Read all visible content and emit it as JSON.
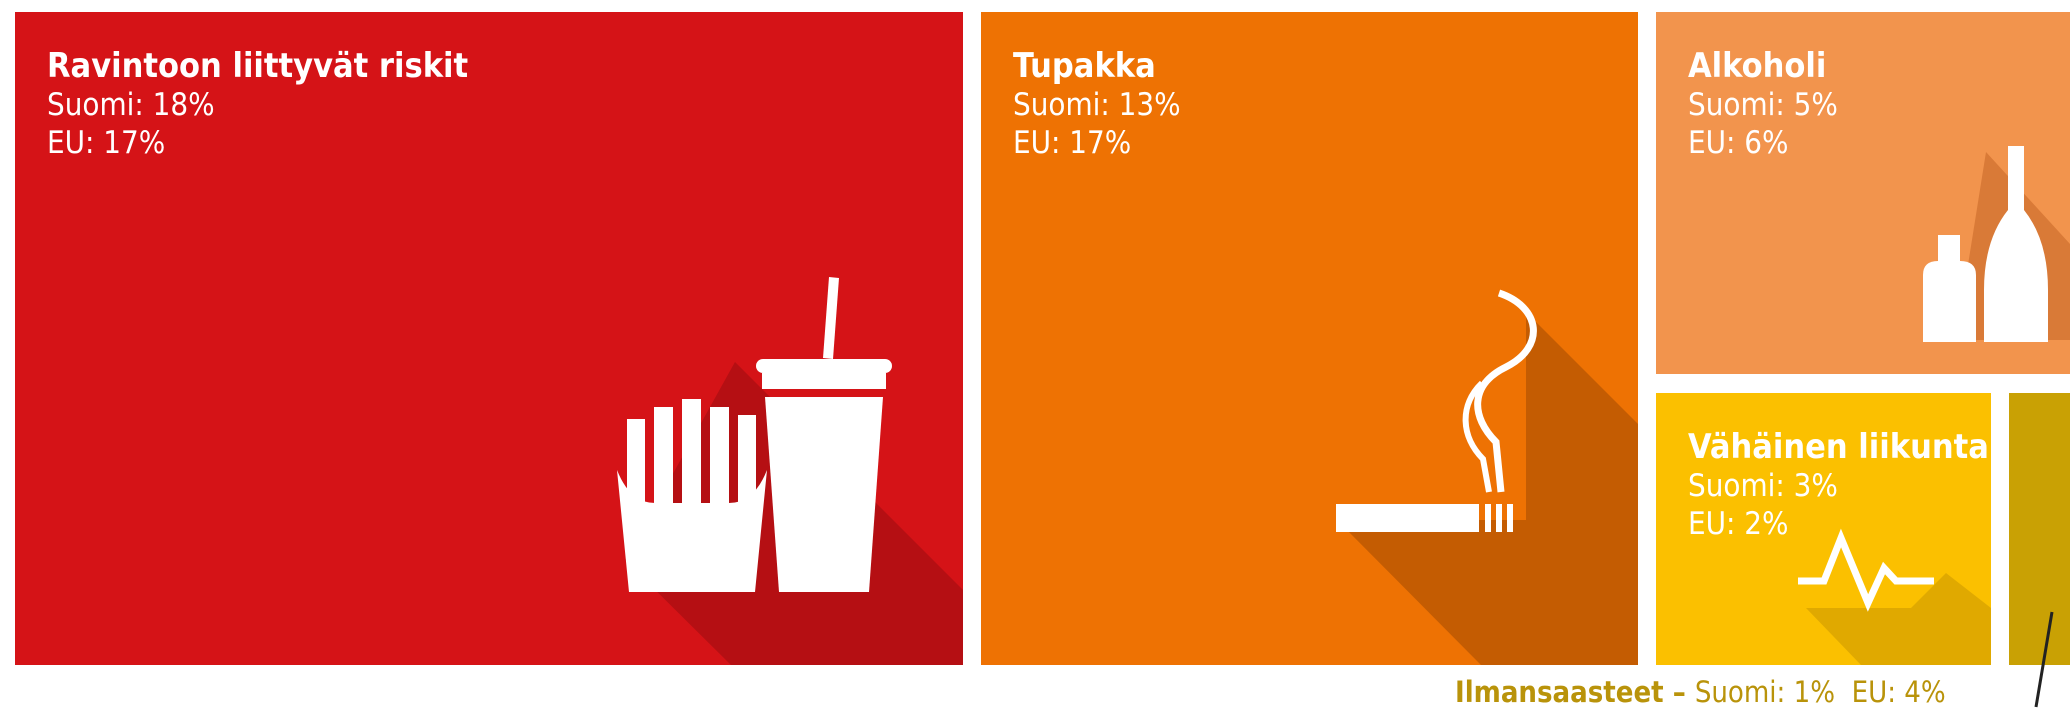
{
  "chart_data": {
    "type": "treemap",
    "items": [
      {
        "id": "food",
        "label": "Ravintoon liittyvät riskit",
        "suomi_text": "Suomi: 18%",
        "eu_text": "EU: 17%",
        "suomi": 18,
        "eu": 17,
        "color": "#d51317",
        "icon": "fries-and-drink-icon"
      },
      {
        "id": "tobacco",
        "label": "Tupakka",
        "suomi_text": "Suomi: 13%",
        "eu_text": "EU: 17%",
        "suomi": 13,
        "eu": 17,
        "color": "#ee7203",
        "icon": "cigarette-icon"
      },
      {
        "id": "alcohol",
        "label": "Alkoholi",
        "suomi_text": "Suomi: 5%",
        "eu_text": "EU: 6%",
        "suomi": 5,
        "eu": 6,
        "color": "#f2944d",
        "icon": "bottles-icon"
      },
      {
        "id": "activity",
        "label": "Vähäinen liikunta",
        "suomi_text": "Suomi: 3%",
        "eu_text": "EU: 2%",
        "suomi": 3,
        "eu": 2,
        "color": "#fbc000",
        "icon": "heartbeat-icon"
      },
      {
        "id": "air",
        "label": "Ilmansaasteet",
        "separator": " – ",
        "suomi_text": "Suomi: 1%",
        "eu_text": "EU: 4%",
        "suomi": 1,
        "eu": 4,
        "color": "#c9a104",
        "label_color": "#b9930a"
      }
    ]
  }
}
